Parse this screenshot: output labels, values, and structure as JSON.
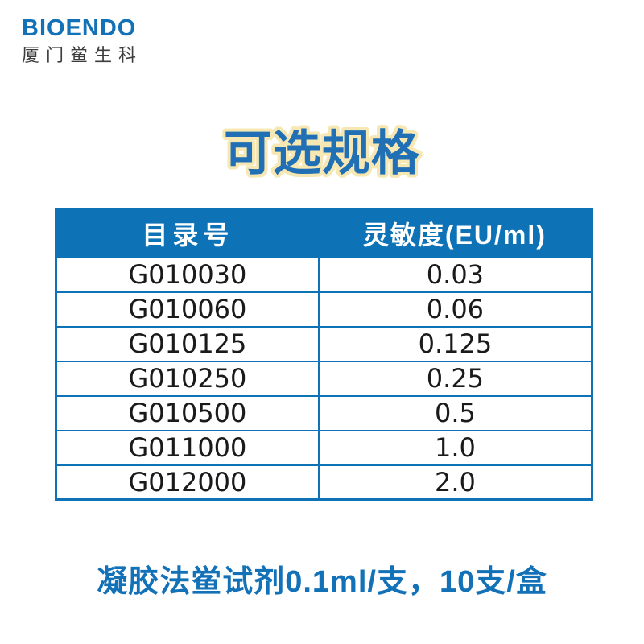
{
  "brand": {
    "name": "BIOENDO",
    "subtitle": "厦门鲎生科"
  },
  "title": "可选规格",
  "table": {
    "headers": [
      "目录号",
      "灵敏度(EU/ml)"
    ],
    "rows": [
      {
        "catalog": "G010030",
        "sensitivity": "0.03"
      },
      {
        "catalog": "G010060",
        "sensitivity": "0.06"
      },
      {
        "catalog": "G010125",
        "sensitivity": "0.125"
      },
      {
        "catalog": "G010250",
        "sensitivity": "0.25"
      },
      {
        "catalog": "G010500",
        "sensitivity": "0.5"
      },
      {
        "catalog": "G011000",
        "sensitivity": "1.0"
      },
      {
        "catalog": "G012000",
        "sensitivity": "2.0"
      }
    ]
  },
  "caption": "凝胶法鲎试剂0.1ml/支，10支/盒",
  "colors": {
    "brand_blue": "#1371b8",
    "header_blue": "#0e73b6",
    "border_blue": "#0e73b6",
    "title_fill": "#2170b5",
    "title_outline": "#f6e7b3",
    "subtitle_gray": "#3d3d3d",
    "cell_text": "#1a1a1a"
  }
}
